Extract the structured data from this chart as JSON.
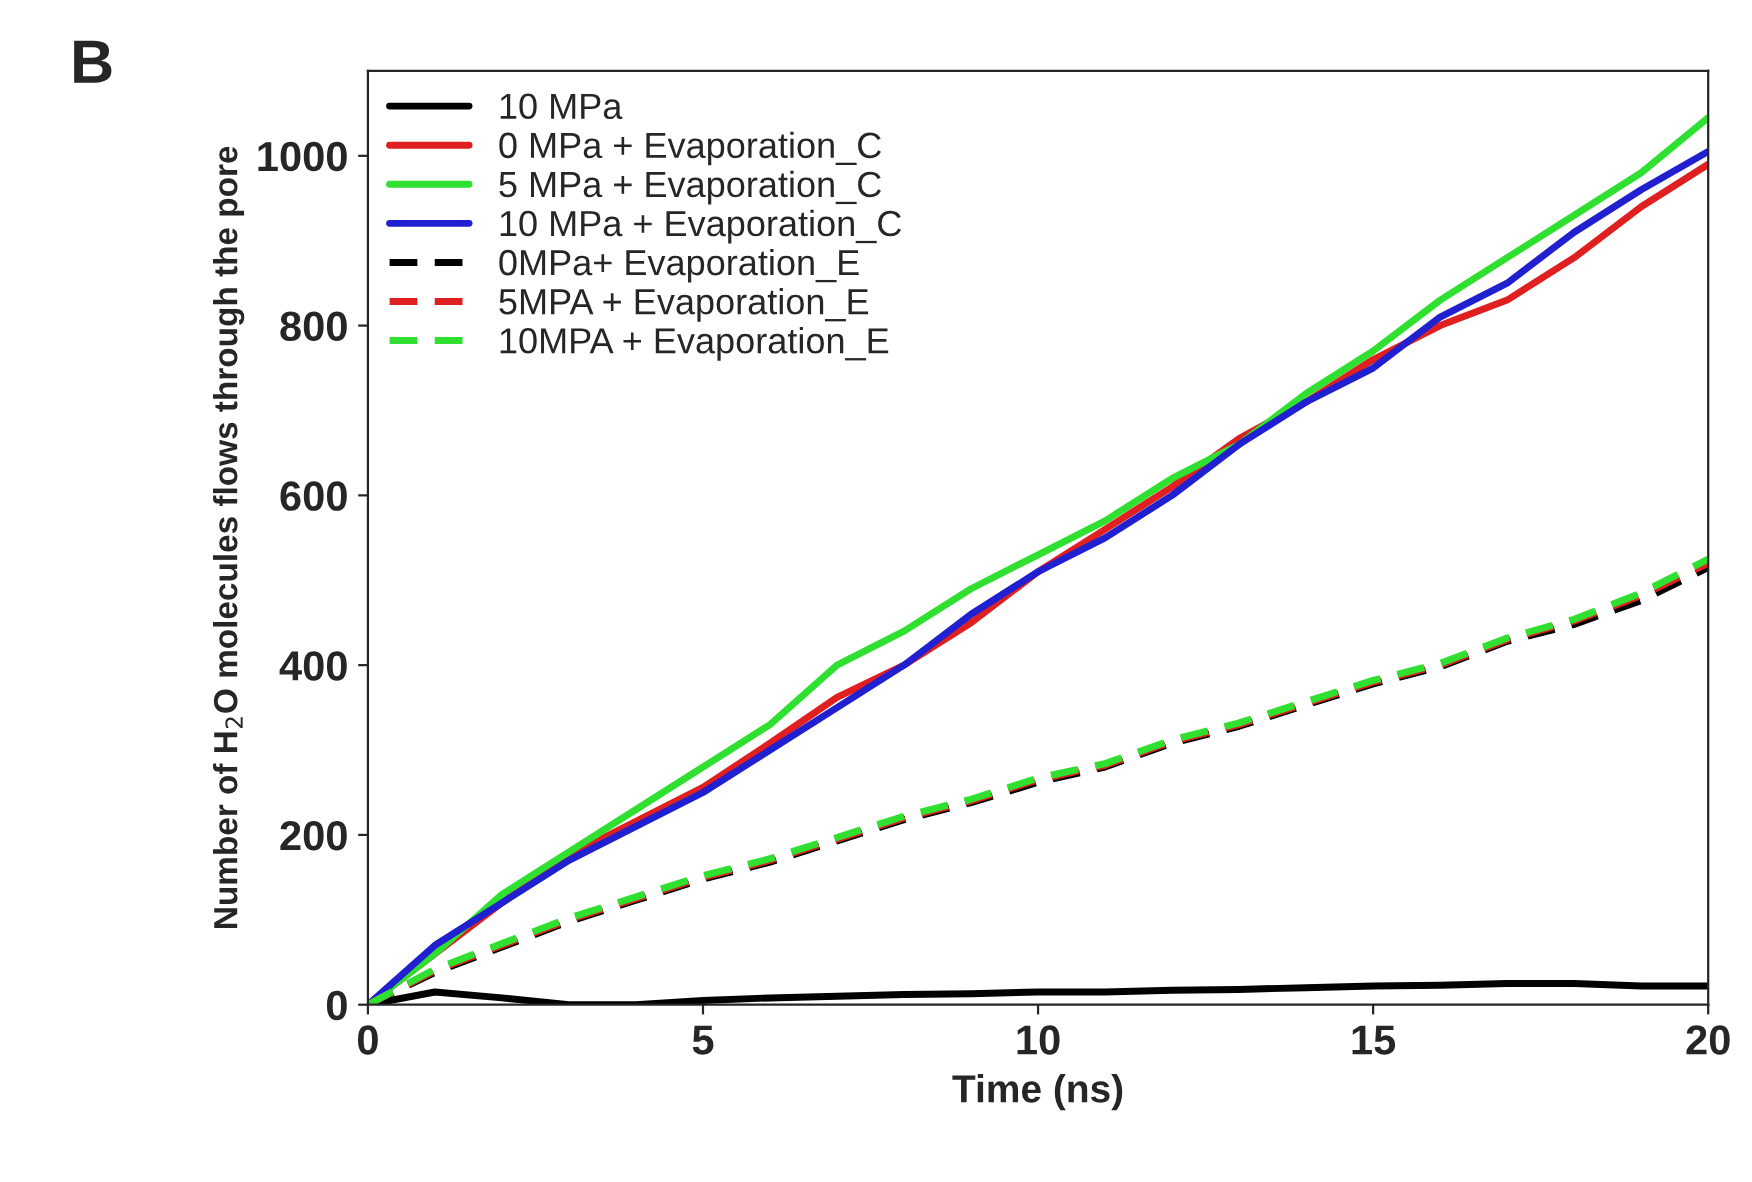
{
  "chart_data": {
    "type": "line",
    "xlabel": "Time (ns)",
    "ylabel": "Number of H$_{2}$O molecules flows through the pore",
    "annotations": [
      "B"
    ],
    "x": [
      0,
      1,
      2,
      3,
      4,
      5,
      6,
      7,
      8,
      9,
      10,
      11,
      12,
      13,
      14,
      15,
      16,
      17,
      18,
      19,
      20
    ],
    "xlim": [
      0,
      20
    ],
    "xticks": [
      0,
      5,
      10,
      15,
      20
    ],
    "ylim": [
      0,
      1100
    ],
    "yticks": [
      0,
      200,
      400,
      600,
      800,
      1000
    ],
    "legend": "top left",
    "grid": false,
    "series": [
      {
        "name": "10 MPa",
        "color": "#000000",
        "line_style": "solid",
        "values": [
          0,
          15,
          8,
          0,
          0,
          5,
          8,
          10,
          12,
          13,
          15,
          15,
          17,
          18,
          20,
          22,
          23,
          25,
          25,
          22,
          22
        ]
      },
      {
        "name": "0 MPa + Evaporation_C",
        "color": "#e02020",
        "line_style": "solid",
        "values": [
          0,
          60,
          120,
          176,
          216,
          256,
          308,
          362,
          400,
          450,
          510,
          560,
          610,
          667,
          710,
          760,
          800,
          830,
          880,
          940,
          990
        ]
      },
      {
        "name": "5 MPa + Evaporation_C",
        "color": "#30e030",
        "line_style": "solid",
        "values": [
          0,
          60,
          130,
          180,
          230,
          280,
          330,
          400,
          440,
          490,
          530,
          570,
          620,
          660,
          720,
          770,
          830,
          880,
          930,
          980,
          1045
        ]
      },
      {
        "name": "10 MPa + Evaporation_C",
        "color": "#2020d0",
        "line_style": "solid",
        "values": [
          0,
          70,
          120,
          170,
          210,
          250,
          300,
          350,
          400,
          460,
          510,
          550,
          600,
          660,
          710,
          750,
          810,
          850,
          910,
          960,
          1005
        ]
      },
      {
        "name": "0MPa+ Evaporation_E",
        "color": "#000000",
        "line_style": "dashed",
        "values": [
          0,
          38,
          68,
          98,
          123,
          148,
          168,
          193,
          218,
          238,
          262,
          280,
          308,
          328,
          353,
          378,
          398,
          428,
          448,
          476,
          515
        ]
      },
      {
        "name": "5MPA + Evaporation_E",
        "color": "#e02020",
        "line_style": "dashed",
        "values": [
          0,
          40,
          70,
          100,
          125,
          150,
          170,
          195,
          220,
          240,
          265,
          282,
          310,
          330,
          355,
          380,
          400,
          430,
          452,
          482,
          520
        ]
      },
      {
        "name": "10MPA + Evaporation_E",
        "color": "#30e030",
        "line_style": "dashed",
        "values": [
          0,
          42,
          72,
          102,
          127,
          152,
          172,
          197,
          222,
          242,
          267,
          284,
          312,
          332,
          357,
          382,
          402,
          432,
          454,
          485,
          525
        ]
      }
    ]
  }
}
